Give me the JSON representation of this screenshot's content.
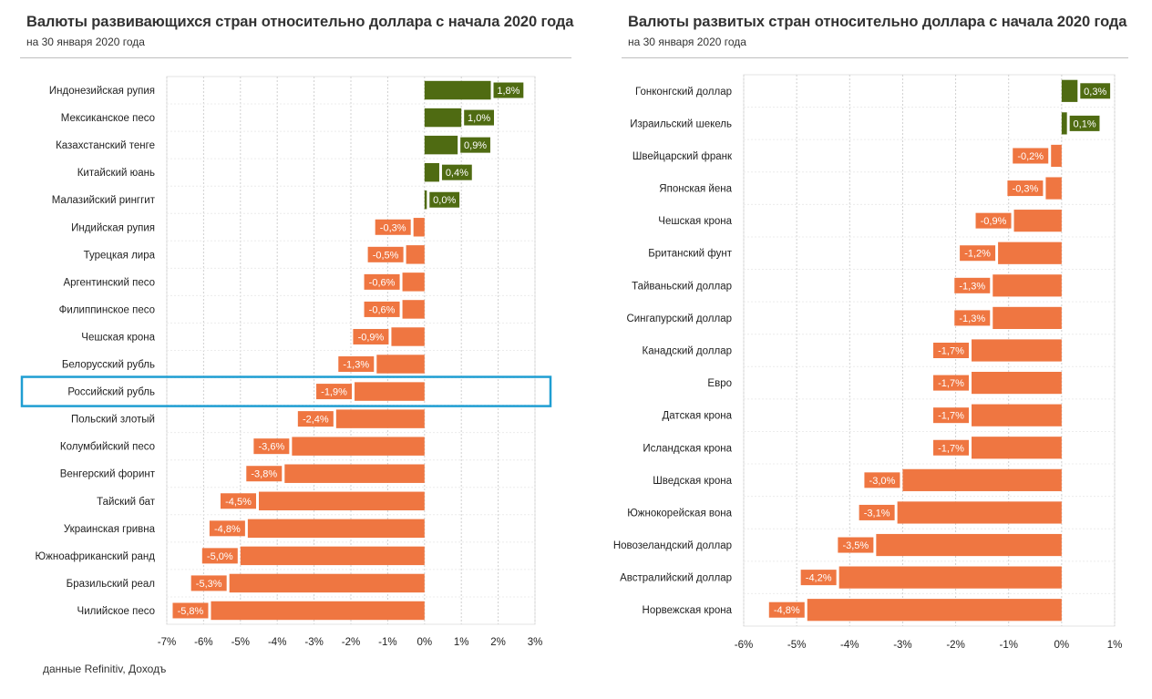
{
  "left": {
    "title": "Валюты развивающихся стран относительно доллара с начала 2020 года",
    "subtitle": "на 30 января 2020  года"
  },
  "right": {
    "title": "Валюты развитых стран относительно доллара с начала 2020 года",
    "subtitle": "на 30 января 2020  года"
  },
  "source": "данные  Refinitiv, Доходъ",
  "colors": {
    "positive": "#4f6b12",
    "negative": "#ef7641",
    "highlight": "#1f9ed2",
    "grid": "#d0d0d0"
  },
  "chart_data": [
    {
      "type": "bar",
      "orientation": "horizontal",
      "categories": [
        "Индонезийская рупия",
        "Мексиканское песо",
        "Казахстанский тенге",
        "Китайский юань",
        "Малазийский ринггит",
        "Индийская рупия",
        "Турецкая лира",
        "Аргентинский песо",
        "Филиппинское песо",
        "Чешская крона",
        "Белорусский рубль",
        "Российский рубль",
        "Польский злотый",
        "Колумбийский песо",
        "Венгерский форинт",
        "Тайский бат",
        "Украинская гривна",
        "Южноафриканский  ранд",
        "Бразильский реал",
        "Чилийское песо"
      ],
      "values": [
        1.8,
        1.0,
        0.9,
        0.4,
        0.0,
        -0.3,
        -0.5,
        -0.6,
        -0.6,
        -0.9,
        -1.3,
        -1.9,
        -2.4,
        -3.6,
        -3.8,
        -4.5,
        -4.8,
        -5.0,
        -5.3,
        -5.8
      ],
      "data_labels": [
        "1,8%",
        "1,0%",
        "0,9%",
        "0,4%",
        "0,0%",
        "-0,3%",
        "-0,5%",
        "-0,6%",
        "-0,6%",
        "-0,9%",
        "-1,3%",
        "-1,9%",
        "-2,4%",
        "-3,6%",
        "-3,8%",
        "-4,5%",
        "-4,8%",
        "-5,0%",
        "-5,3%",
        "-5,8%"
      ],
      "highlighted_category": "Российский рубль",
      "xlim": [
        -7,
        3
      ],
      "xticks": [
        -7,
        -6,
        -5,
        -4,
        -3,
        -2,
        -1,
        0,
        1,
        2,
        3
      ],
      "xtick_labels": [
        "-7%",
        "-6%",
        "-5%",
        "-4%",
        "-3%",
        "-2%",
        "-1%",
        "0%",
        "1%",
        "2%",
        "3%"
      ],
      "grid": true
    },
    {
      "type": "bar",
      "orientation": "horizontal",
      "categories": [
        "Гонконгский доллар",
        "Израильский шекель",
        "Швейцарский франк",
        "Японская йена",
        "Чешская крона",
        "Британский фунт",
        "Тайваньский  доллар",
        "Сингапурский доллар",
        "Канадский доллар",
        "Евро",
        "Датская крона",
        "Исландская крона",
        "Шведская крона",
        "Южнокорейская вона",
        "Новозеландский доллар",
        "Австралийский доллар",
        "Норвежская крона"
      ],
      "values": [
        0.3,
        0.1,
        -0.2,
        -0.3,
        -0.9,
        -1.2,
        -1.3,
        -1.3,
        -1.7,
        -1.7,
        -1.7,
        -1.7,
        -3.0,
        -3.1,
        -3.5,
        -4.2,
        -4.8
      ],
      "data_labels": [
        "0,3%",
        "0,1%",
        "-0,2%",
        "-0,3%",
        "-0,9%",
        "-1,2%",
        "-1,3%",
        "-1,3%",
        "-1,7%",
        "-1,7%",
        "-1,7%",
        "-1,7%",
        "-3,0%",
        "-3,1%",
        "-3,5%",
        "-4,2%",
        "-4,8%"
      ],
      "xlim": [
        -6,
        1
      ],
      "xticks": [
        -6,
        -5,
        -4,
        -3,
        -2,
        -1,
        0,
        1
      ],
      "xtick_labels": [
        "-6%",
        "-5%",
        "-4%",
        "-3%",
        "-2%",
        "-1%",
        "0%",
        "1%"
      ],
      "grid": true
    }
  ]
}
